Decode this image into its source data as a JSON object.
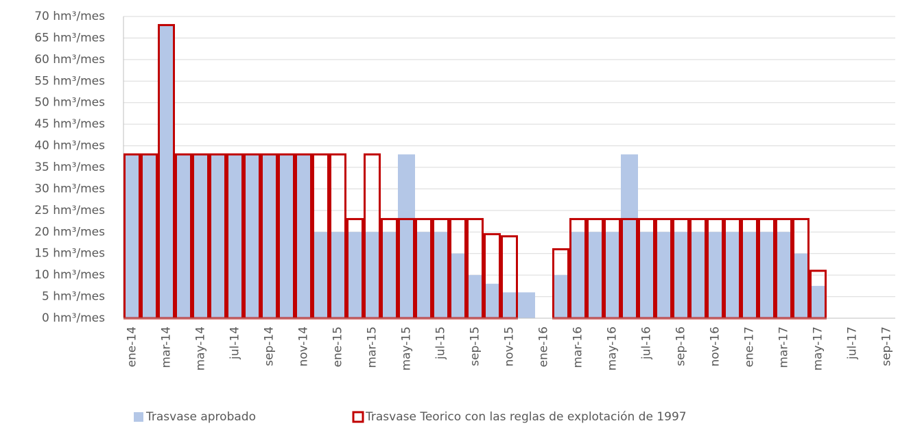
{
  "chart_data": {
    "type": "bar",
    "categories": [
      "ene-14",
      null,
      "mar-14",
      null,
      "may-14",
      null,
      "jul-14",
      null,
      "sep-14",
      null,
      "nov-14",
      null,
      "ene-15",
      null,
      "mar-15",
      null,
      "may-15",
      null,
      "jul-15",
      null,
      "sep-15",
      null,
      "nov-15",
      null,
      "ene-16",
      null,
      "mar-16",
      null,
      "may-16",
      null,
      "jul-16",
      null,
      "sep-16",
      null,
      "nov-16",
      null,
      "ene-17",
      null,
      "mar-17",
      null,
      "may-17",
      null,
      "jul-17",
      null,
      "sep-17"
    ],
    "series": [
      {
        "name": "Trasvase aprobado",
        "color": "#b4c7e7",
        "style": "filled",
        "values": [
          38,
          38,
          68,
          38,
          38,
          38,
          38,
          38,
          38,
          38,
          38,
          20,
          20,
          20,
          20,
          20,
          38,
          20,
          20,
          15,
          10,
          8,
          6,
          6,
          null,
          10,
          20,
          20,
          20,
          38,
          20,
          20,
          20,
          20,
          20,
          20,
          20,
          20,
          20,
          15,
          7.5,
          null,
          null,
          null,
          null
        ]
      },
      {
        "name": "Trasvase Teorico con las reglas de explotación de 1997",
        "color": "#c00000",
        "style": "outline",
        "values": [
          38,
          38,
          68,
          38,
          38,
          38,
          38,
          38,
          38,
          38,
          38,
          38,
          38,
          23,
          38,
          23,
          23,
          23,
          23,
          23,
          23,
          19.5,
          19,
          null,
          null,
          16,
          23,
          23,
          23,
          23,
          23,
          23,
          23,
          23,
          23,
          23,
          23,
          23,
          23,
          23,
          11,
          null,
          null,
          null,
          null
        ]
      }
    ],
    "ylim": [
      0,
      70
    ],
    "yticks": [
      {
        "value": 0,
        "label": "0 hm³/mes"
      },
      {
        "value": 5,
        "label": "5 hm³/mes"
      },
      {
        "value": 10,
        "label": "10 hm³/mes"
      },
      {
        "value": 15,
        "label": "15 hm³/mes"
      },
      {
        "value": 20,
        "label": "20 hm³/mes"
      },
      {
        "value": 25,
        "label": "25 hm³/mes"
      },
      {
        "value": 30,
        "label": "30 hm³/mes"
      },
      {
        "value": 35,
        "label": "35 hm³/mes"
      },
      {
        "value": 40,
        "label": "40 hm³/mes"
      },
      {
        "value": 45,
        "label": "45 hm³/mes"
      },
      {
        "value": 50,
        "label": "50 hm³/mes"
      },
      {
        "value": 55,
        "label": "55 hm³/mes"
      },
      {
        "value": 60,
        "label": "60 hm³/mes"
      },
      {
        "value": 65,
        "label": "65 hm³/mes"
      },
      {
        "value": 70,
        "label": "70 hm³/mes"
      }
    ],
    "grid": true,
    "legend": "bottom"
  }
}
